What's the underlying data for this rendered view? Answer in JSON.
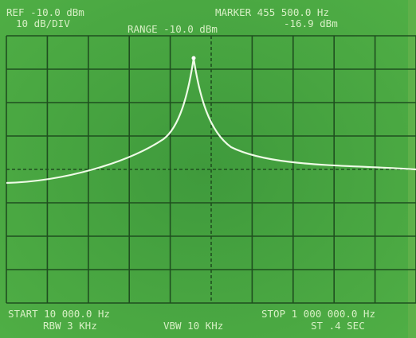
{
  "header": {
    "ref": "REF -10.0 dBm",
    "scale": "10 dB/DIV",
    "range": "RANGE -10.0 dBm",
    "marker": "MARKER 455 500.0 Hz",
    "marker_level": "-16.9 dBm"
  },
  "footer": {
    "start": "START 10 000.0 Hz",
    "rbw": "RBW 3 KHz",
    "vbw": "VBW 10 KHz",
    "stop": "STOP 1 000 000.0 Hz",
    "sweep": "ST .4 SEC"
  }
}
